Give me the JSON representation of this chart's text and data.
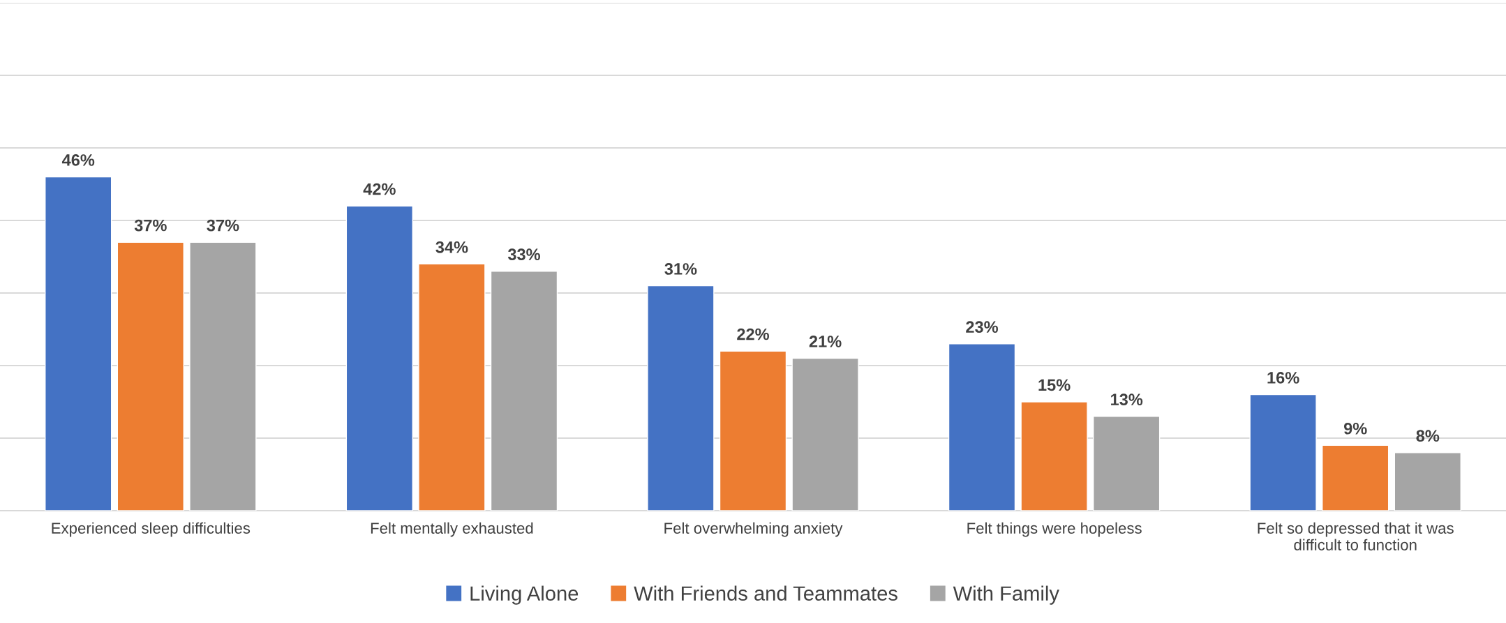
{
  "chart_data": {
    "type": "bar",
    "categories": [
      "Experienced sleep difficulties",
      "Felt mentally exhausted",
      "Felt overwhelming anxiety",
      "Felt things were hopeless",
      "Felt so depressed that it was\ndifficult to function"
    ],
    "series": [
      {
        "name": "Living Alone",
        "color": "#4472c4",
        "values": [
          46,
          42,
          31,
          23,
          16
        ],
        "value_labels": [
          "46%",
          "42%",
          "31%",
          "23%",
          "16%"
        ]
      },
      {
        "name": "With Friends and Teammates",
        "color": "#ed7d31",
        "values": [
          37,
          34,
          22,
          15,
          9
        ],
        "value_labels": [
          "37%",
          "34%",
          "22%",
          "15%",
          "9%"
        ]
      },
      {
        "name": "With Family",
        "color": "#a5a5a5",
        "values": [
          37,
          33,
          21,
          13,
          8
        ],
        "value_labels": [
          "37%",
          "33%",
          "21%",
          "13%",
          "8%"
        ]
      }
    ],
    "ylim": [
      0,
      70
    ],
    "yticks": [
      {
        "value": 0,
        "label": null
      },
      {
        "value": 10,
        "label": null
      },
      {
        "value": 20,
        "label": null
      },
      {
        "value": 30,
        "label": null
      },
      {
        "value": 40,
        "label": null
      },
      {
        "value": 50,
        "label": null
      },
      {
        "value": 60,
        "label": null
      },
      {
        "value": 70,
        "label": null
      }
    ],
    "grid": "y",
    "legend": "bottom",
    "tick_labels": "x"
  }
}
